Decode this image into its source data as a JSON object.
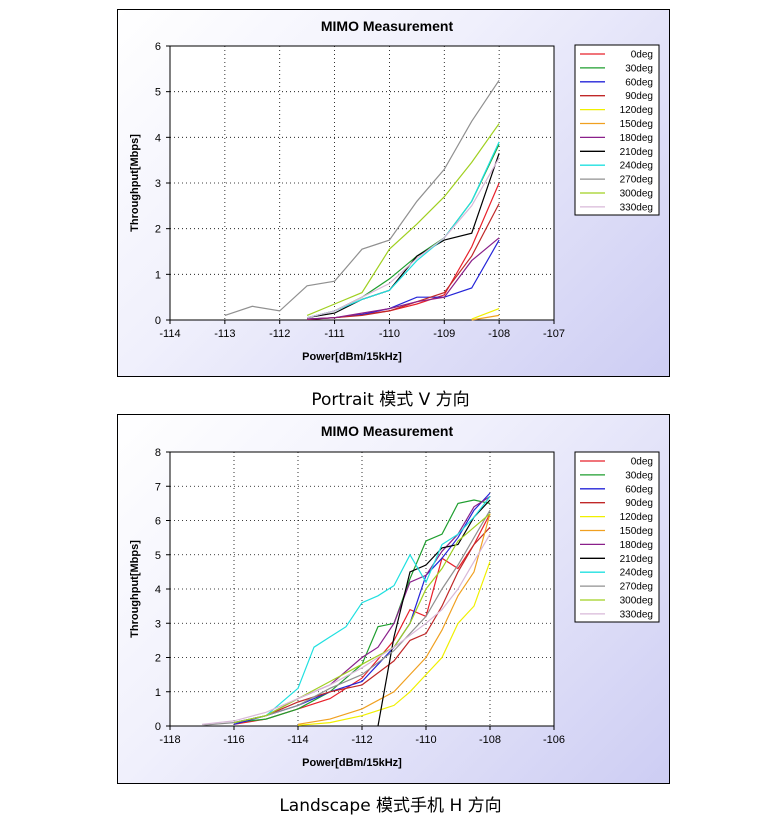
{
  "captions": [
    "Portrait 模式 V 方向",
    "Landscape 模式手机 H 方向"
  ],
  "chart_data": [
    {
      "type": "line",
      "title": "MIMO Measurement",
      "xlabel": "Power[dBm/15kHz]",
      "ylabel": "Throughput[Mbps]",
      "xlim": [
        -114,
        -107
      ],
      "ylim": [
        0,
        6
      ],
      "xticks": [
        -114,
        -113,
        -112,
        -111,
        -110,
        -109,
        -108,
        -107
      ],
      "yticks": [
        0,
        1,
        2,
        3,
        4,
        5,
        6
      ],
      "grid": true,
      "legend_position": "right",
      "series": [
        {
          "name": "0deg",
          "color": "#e8202a",
          "x": [
            -111.5,
            -111,
            -110.5,
            -110,
            -109.5,
            -109,
            -108.5,
            -108
          ],
          "y": [
            0.02,
            0.05,
            0.12,
            0.2,
            0.35,
            0.55,
            1.6,
            3.0
          ]
        },
        {
          "name": "30deg",
          "color": "#1e9e2e",
          "x": [
            -111.5,
            -111,
            -110.5,
            -110,
            -109.5,
            -109,
            -108.5,
            -108
          ],
          "y": [
            0.05,
            0.2,
            0.5,
            0.9,
            1.4,
            1.8,
            2.6,
            3.85
          ]
        },
        {
          "name": "60deg",
          "color": "#2424d8",
          "x": [
            -111.5,
            -111,
            -110.5,
            -110,
            -109.5,
            -109,
            -108.5,
            -108
          ],
          "y": [
            0.02,
            0.05,
            0.12,
            0.25,
            0.5,
            0.5,
            0.7,
            1.75
          ]
        },
        {
          "name": "90deg",
          "color": "#c02828",
          "x": [
            -111.5,
            -111,
            -110.5,
            -110,
            -109.5,
            -109,
            -108.5,
            -108
          ],
          "y": [
            0.01,
            0.05,
            0.1,
            0.2,
            0.4,
            0.6,
            1.4,
            2.55
          ]
        },
        {
          "name": "120deg",
          "color": "#f0f000",
          "x": [
            -108.5,
            -108
          ],
          "y": [
            0.02,
            0.25
          ]
        },
        {
          "name": "150deg",
          "color": "#f0a020",
          "x": [
            -108.5,
            -108
          ],
          "y": [
            0.0,
            0.1
          ]
        },
        {
          "name": "180deg",
          "color": "#8a208a",
          "x": [
            -111.5,
            -111,
            -110.5,
            -110,
            -109.5,
            -109,
            -108.5,
            -108
          ],
          "y": [
            0.02,
            0.05,
            0.15,
            0.25,
            0.4,
            0.5,
            1.3,
            1.8
          ]
        },
        {
          "name": "210deg",
          "color": "#000000",
          "x": [
            -111.5,
            -111,
            -110.5,
            -110,
            -109.5,
            -109,
            -108.5,
            -108
          ],
          "y": [
            0.05,
            0.15,
            0.45,
            0.65,
            1.4,
            1.75,
            1.9,
            3.65
          ]
        },
        {
          "name": "240deg",
          "color": "#20e0e0",
          "x": [
            -111.5,
            -111,
            -110.5,
            -110,
            -109.5,
            -109,
            -108.5,
            -108
          ],
          "y": [
            0.05,
            0.2,
            0.45,
            0.65,
            1.3,
            1.8,
            2.6,
            3.9
          ]
        },
        {
          "name": "270deg",
          "color": "#909090",
          "x": [
            -113,
            -112.5,
            -112,
            -111.5,
            -111,
            -110.5,
            -110,
            -109.5,
            -109,
            -108.5,
            -108
          ],
          "y": [
            0.1,
            0.3,
            0.2,
            0.75,
            0.85,
            1.55,
            1.75,
            2.6,
            3.3,
            4.35,
            5.25
          ]
        },
        {
          "name": "300deg",
          "color": "#a0d020",
          "x": [
            -111.5,
            -111,
            -110.5,
            -110,
            -109.5,
            -109,
            -108.5,
            -108
          ],
          "y": [
            0.1,
            0.35,
            0.6,
            1.55,
            2.1,
            2.7,
            3.45,
            4.3
          ]
        },
        {
          "name": "330deg",
          "color": "#d8b8d8",
          "x": [
            -111.5,
            -111,
            -110.5,
            -110,
            -109.5,
            -109,
            -108.5,
            -108
          ],
          "y": [
            0.05,
            0.2,
            0.5,
            0.8,
            1.35,
            1.8,
            2.5,
            3.55
          ]
        }
      ]
    },
    {
      "type": "line",
      "title": "MIMO Measurement",
      "xlabel": "Power[dBm/15kHz]",
      "ylabel": "Throughput[Mbps]",
      "xlim": [
        -118,
        -106
      ],
      "ylim": [
        0,
        8
      ],
      "xticks": [
        -118,
        -116,
        -114,
        -112,
        -110,
        -108,
        -106
      ],
      "yticks": [
        0,
        1,
        2,
        3,
        4,
        5,
        6,
        7,
        8
      ],
      "grid": true,
      "legend_position": "right",
      "series": [
        {
          "name": "0deg",
          "color": "#e8202a",
          "x": [
            -116,
            -115,
            -114,
            -113,
            -112,
            -111,
            -110.5,
            -110,
            -109.5,
            -109,
            -108.5,
            -108
          ],
          "y": [
            0.05,
            0.2,
            0.5,
            0.8,
            1.4,
            2.5,
            3.4,
            3.2,
            4.9,
            4.6,
            5.3,
            6.2
          ]
        },
        {
          "name": "30deg",
          "color": "#1e9e2e",
          "x": [
            -116,
            -115,
            -114,
            -113,
            -112,
            -111.5,
            -111,
            -110.5,
            -110,
            -109.5,
            -109,
            -108.5,
            -108
          ],
          "y": [
            0.1,
            0.2,
            0.5,
            1.0,
            1.8,
            2.9,
            3.0,
            4.3,
            5.4,
            5.6,
            6.5,
            6.6,
            6.5
          ]
        },
        {
          "name": "60deg",
          "color": "#2424d8",
          "x": [
            -116,
            -115,
            -114,
            -113,
            -112,
            -111,
            -110.5,
            -110,
            -109.5,
            -109,
            -108.5,
            -108
          ],
          "y": [
            0.05,
            0.3,
            0.6,
            1.0,
            1.3,
            2.3,
            3.0,
            4.4,
            4.9,
            5.5,
            6.3,
            6.8
          ]
        },
        {
          "name": "90deg",
          "color": "#c02828",
          "x": [
            -116,
            -115,
            -114,
            -113,
            -112,
            -111,
            -110.5,
            -110,
            -109.5,
            -109,
            -108.5,
            -108
          ],
          "y": [
            0.1,
            0.3,
            0.7,
            1.0,
            1.2,
            1.9,
            2.5,
            2.7,
            3.5,
            4.5,
            5.3,
            5.8
          ]
        },
        {
          "name": "120deg",
          "color": "#f0f000",
          "x": [
            -114,
            -113,
            -112,
            -111,
            -110.5,
            -110,
            -109.5,
            -109,
            -108.5,
            -108
          ],
          "y": [
            0.02,
            0.1,
            0.3,
            0.6,
            1.0,
            1.5,
            2.0,
            3.0,
            3.5,
            4.8
          ]
        },
        {
          "name": "150deg",
          "color": "#f0a020",
          "x": [
            -114,
            -113,
            -112,
            -111,
            -110.5,
            -110,
            -109.5,
            -109,
            -108.5,
            -108
          ],
          "y": [
            0.05,
            0.2,
            0.5,
            1.0,
            1.5,
            2.0,
            2.8,
            3.8,
            4.5,
            6.2
          ]
        },
        {
          "name": "180deg",
          "color": "#8a208a",
          "x": [
            -116,
            -115,
            -114,
            -113,
            -112,
            -111.5,
            -111,
            -110.5,
            -110,
            -109.5,
            -109,
            -108.5,
            -108
          ],
          "y": [
            0.1,
            0.3,
            0.8,
            1.2,
            2.0,
            2.3,
            3.0,
            4.2,
            4.4,
            5.1,
            5.6,
            6.4,
            6.7
          ]
        },
        {
          "name": "210deg",
          "color": "#000000",
          "x": [
            -111.5,
            -111,
            -110.5,
            -110,
            -109.5,
            -109,
            -108.5,
            -108
          ],
          "y": [
            0.0,
            2.6,
            4.5,
            4.7,
            5.2,
            5.3,
            6.1,
            6.6
          ]
        },
        {
          "name": "240deg",
          "color": "#20e0e0",
          "x": [
            -116,
            -115,
            -114,
            -113.5,
            -113,
            -112.5,
            -112,
            -111.5,
            -111,
            -110.5,
            -110,
            -109.5,
            -109,
            -108.5,
            -108
          ],
          "y": [
            0.1,
            0.3,
            1.1,
            2.3,
            2.6,
            2.9,
            3.6,
            3.8,
            4.1,
            5.0,
            4.2,
            5.3,
            5.6,
            6.1,
            6.7
          ]
        },
        {
          "name": "270deg",
          "color": "#909090",
          "x": [
            -117,
            -116,
            -115,
            -114,
            -113,
            -112,
            -111,
            -110,
            -109.5,
            -109,
            -108.5,
            -108
          ],
          "y": [
            0.02,
            0.1,
            0.3,
            0.6,
            1.1,
            1.5,
            2.2,
            3.2,
            4.0,
            4.7,
            5.5,
            6.3
          ]
        },
        {
          "name": "300deg",
          "color": "#a0d020",
          "x": [
            -116,
            -115,
            -114,
            -113,
            -112,
            -111,
            -110.5,
            -110,
            -109.5,
            -109,
            -108.5,
            -108
          ],
          "y": [
            0.1,
            0.3,
            0.8,
            1.3,
            1.8,
            2.3,
            3.0,
            4.0,
            4.6,
            5.4,
            5.8,
            6.2
          ]
        },
        {
          "name": "330deg",
          "color": "#d8b8d8",
          "x": [
            -117,
            -116,
            -115,
            -114,
            -113,
            -112,
            -111,
            -110,
            -109.5,
            -109,
            -108.5,
            -108
          ],
          "y": [
            0.05,
            0.15,
            0.4,
            0.8,
            1.2,
            1.7,
            2.3,
            3.0,
            3.4,
            4.0,
            4.8,
            5.6
          ]
        }
      ]
    }
  ]
}
